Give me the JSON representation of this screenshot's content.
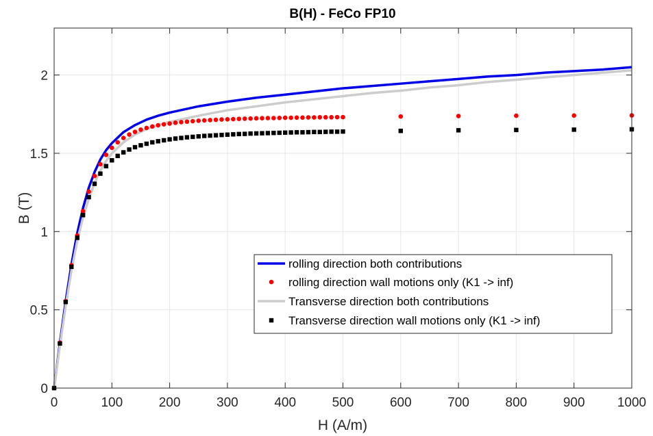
{
  "chart_data": {
    "type": "line",
    "title": "B(H) - FeCo FP10",
    "xlabel": "H (A/m)",
    "ylabel": "B (T)",
    "xlim": [
      0,
      1000
    ],
    "ylim": [
      0,
      2.3
    ],
    "xticks": [
      0,
      100,
      200,
      300,
      400,
      500,
      600,
      700,
      800,
      900,
      1000
    ],
    "yticks": [
      0,
      0.5,
      1,
      1.5,
      2
    ],
    "xtick_labels": [
      "0",
      "100",
      "200",
      "300",
      "400",
      "500",
      "600",
      "700",
      "800",
      "900",
      "1000"
    ],
    "ytick_labels": [
      "0",
      "0.5",
      "1",
      "1.5",
      "2"
    ],
    "grid": true,
    "legend_position": "lower-right",
    "series": [
      {
        "name": "rolling direction both contributions",
        "style": "line",
        "color": "#0000e6",
        "x": [
          0,
          10,
          20,
          30,
          40,
          50,
          60,
          70,
          80,
          90,
          100,
          120,
          140,
          160,
          180,
          200,
          250,
          300,
          350,
          400,
          450,
          500,
          550,
          600,
          650,
          700,
          750,
          800,
          850,
          900,
          950,
          1000
        ],
        "y": [
          0,
          0.29,
          0.555,
          0.79,
          0.99,
          1.15,
          1.28,
          1.38,
          1.46,
          1.52,
          1.565,
          1.635,
          1.68,
          1.715,
          1.74,
          1.76,
          1.8,
          1.83,
          1.855,
          1.875,
          1.895,
          1.915,
          1.93,
          1.945,
          1.96,
          1.975,
          1.99,
          2.0,
          2.015,
          2.025,
          2.035,
          2.05
        ]
      },
      {
        "name": "rolling direction wall motions only (K1 -> inf)",
        "style": "dots",
        "color": "#ff0000",
        "x": [
          0,
          10,
          20,
          30,
          40,
          50,
          60,
          70,
          80,
          90,
          100,
          110,
          120,
          130,
          140,
          150,
          160,
          170,
          180,
          190,
          200,
          210,
          220,
          230,
          240,
          250,
          260,
          270,
          280,
          290,
          300,
          310,
          320,
          330,
          340,
          350,
          360,
          370,
          380,
          390,
          400,
          410,
          420,
          430,
          440,
          450,
          460,
          470,
          480,
          490,
          500,
          600,
          700,
          800,
          900,
          1000
        ],
        "y": [
          0,
          0.29,
          0.555,
          0.785,
          0.975,
          1.13,
          1.255,
          1.355,
          1.43,
          1.49,
          1.535,
          1.57,
          1.598,
          1.62,
          1.637,
          1.651,
          1.662,
          1.671,
          1.679,
          1.685,
          1.69,
          1.695,
          1.699,
          1.702,
          1.705,
          1.708,
          1.71,
          1.712,
          1.714,
          1.716,
          1.717,
          1.718,
          1.72,
          1.721,
          1.722,
          1.723,
          1.724,
          1.725,
          1.725,
          1.726,
          1.727,
          1.727,
          1.728,
          1.728,
          1.729,
          1.729,
          1.73,
          1.73,
          1.73,
          1.731,
          1.731,
          1.735,
          1.738,
          1.74,
          1.741,
          1.742
        ]
      },
      {
        "name": "Transverse direction both contributions",
        "style": "line",
        "color": "#cccccc",
        "x": [
          0,
          10,
          20,
          30,
          40,
          50,
          60,
          70,
          80,
          90,
          100,
          120,
          140,
          160,
          180,
          200,
          250,
          300,
          350,
          400,
          450,
          500,
          550,
          600,
          650,
          700,
          750,
          800,
          850,
          900,
          950,
          1000
        ],
        "y": [
          0,
          0.27,
          0.525,
          0.75,
          0.94,
          1.09,
          1.21,
          1.31,
          1.39,
          1.45,
          1.5,
          1.57,
          1.62,
          1.655,
          1.68,
          1.7,
          1.74,
          1.775,
          1.8,
          1.825,
          1.845,
          1.865,
          1.885,
          1.9,
          1.92,
          1.935,
          1.955,
          1.97,
          1.985,
          2.0,
          2.015,
          2.03
        ]
      },
      {
        "name": "Transverse direction wall motions only (K1 -> inf)",
        "style": "squares",
        "color": "#000000",
        "x": [
          0,
          10,
          20,
          30,
          40,
          50,
          60,
          70,
          80,
          90,
          100,
          110,
          120,
          130,
          140,
          150,
          160,
          170,
          180,
          190,
          200,
          210,
          220,
          230,
          240,
          250,
          260,
          270,
          280,
          290,
          300,
          310,
          320,
          330,
          340,
          350,
          360,
          370,
          380,
          390,
          400,
          410,
          420,
          430,
          440,
          450,
          460,
          470,
          480,
          490,
          500,
          600,
          700,
          800,
          900,
          1000
        ],
        "y": [
          0,
          0.285,
          0.55,
          0.775,
          0.96,
          1.105,
          1.22,
          1.305,
          1.37,
          1.418,
          1.455,
          1.483,
          1.506,
          1.524,
          1.539,
          1.551,
          1.561,
          1.57,
          1.577,
          1.583,
          1.589,
          1.594,
          1.598,
          1.602,
          1.605,
          1.608,
          1.611,
          1.613,
          1.615,
          1.617,
          1.619,
          1.621,
          1.623,
          1.624,
          1.626,
          1.627,
          1.628,
          1.629,
          1.63,
          1.631,
          1.632,
          1.633,
          1.634,
          1.634,
          1.635,
          1.636,
          1.636,
          1.637,
          1.638,
          1.638,
          1.639,
          1.643,
          1.647,
          1.649,
          1.651,
          1.653
        ]
      }
    ]
  }
}
